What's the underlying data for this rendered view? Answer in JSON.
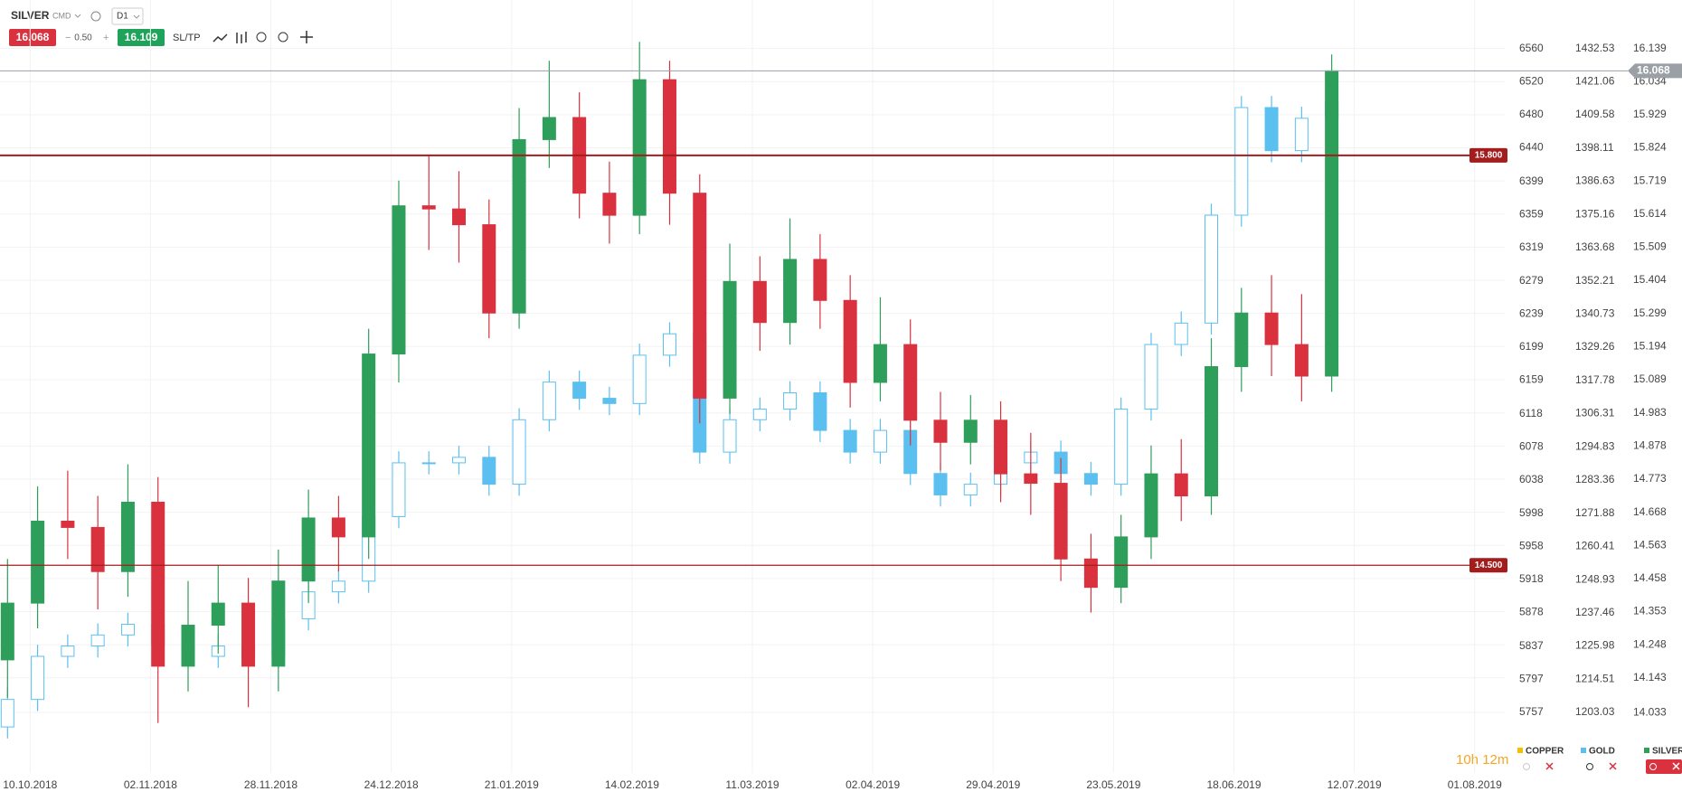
{
  "toolbar": {
    "symbol": "SILVER",
    "group": "CMD",
    "timeframe": "D1",
    "sell": 16.068,
    "spread": {
      "value": 0.5,
      "label": "0.50"
    },
    "buy": 16.109,
    "sltp": "SL/TP"
  },
  "timer": "10h 12m",
  "chart_data": {
    "type": "candlestick",
    "x": [
      1,
      5,
      9,
      13,
      17,
      21,
      25,
      29,
      33,
      37,
      41,
      45,
      49,
      53,
      57,
      61,
      65,
      69,
      73,
      77,
      81,
      85,
      89,
      93,
      97,
      101,
      105,
      109,
      113,
      117,
      121,
      125,
      129,
      133,
      137,
      141,
      145,
      149,
      153,
      157,
      161,
      165,
      169,
      173,
      177
    ],
    "xlim": [
      0,
      200
    ],
    "xticks": [
      {
        "value": 4,
        "label": "10.10.2018"
      },
      {
        "value": 20,
        "label": "02.11.2018"
      },
      {
        "value": 36,
        "label": "28.11.2018"
      },
      {
        "value": 52,
        "label": "24.12.2018"
      },
      {
        "value": 68,
        "label": "21.01.2019"
      },
      {
        "value": 84,
        "label": "14.02.2019"
      },
      {
        "value": 100,
        "label": "11.03.2019"
      },
      {
        "value": 116,
        "label": "02.04.2019"
      },
      {
        "value": 132,
        "label": "29.04.2019"
      },
      {
        "value": 148,
        "label": "23.05.2019"
      },
      {
        "value": 164,
        "label": "18.06.2019"
      },
      {
        "value": 180,
        "label": "12.07.2019"
      },
      {
        "value": 196,
        "label": "01.08.2019"
      }
    ],
    "ylim": [
      13.913,
      16.178
    ],
    "yticks": [
      16.139,
      16.034,
      15.929,
      15.824,
      15.719,
      15.614,
      15.509,
      15.404,
      15.299,
      15.194,
      15.089,
      14.983,
      14.878,
      14.773,
      14.668,
      14.563,
      14.458,
      14.353,
      14.248,
      14.143,
      14.033
    ],
    "y2lim": [
      1189.9,
      1436.78
    ],
    "y2ticks": [
      1432.53,
      1421.06,
      1409.58,
      1398.11,
      1386.63,
      1375.16,
      1363.68,
      1352.21,
      1340.73,
      1329.26,
      1317.78,
      1306.31,
      1294.83,
      1283.36,
      1271.88,
      1260.41,
      1248.93,
      1237.46,
      1225.98,
      1214.51,
      1203.03
    ],
    "y3lim": [
      5711,
      6575
    ],
    "y3ticks": [
      6560,
      6520,
      6480,
      6440,
      6399,
      6359,
      6319,
      6279,
      6239,
      6199,
      6159,
      6118,
      6078,
      6038,
      5998,
      5958,
      5918,
      5878,
      5837,
      5797,
      5757
    ],
    "grid": true,
    "last_price": 16.068,
    "levels": [
      {
        "value": 15.8,
        "label": "15.800"
      },
      {
        "value": 14.5,
        "label": "14.500"
      }
    ],
    "level_color": "#a31d1d",
    "series": [
      {
        "name": "COPPER",
        "color": "#f5c000",
        "axis": "y3",
        "hidden": true
      },
      {
        "name": "GOLD",
        "color": "#5bc0f0",
        "axis": "y2",
        "hollow_up": true,
        "open": [
          1198,
          1207.5,
          1222.4,
          1226,
          1229.8,
          1233.5,
          1226,
          1222.4,
          1226,
          1222.4,
          1235.4,
          1244.7,
          1248.4,
          1270.7,
          1289.3,
          1289.3,
          1291.2,
          1281.9,
          1304.2,
          1317.2,
          1311.6,
          1309.8,
          1326.5,
          1333.9,
          1293,
          1304.2,
          1307.9,
          1313.5,
          1300.5,
          1293,
          1300.5,
          1285.6,
          1278.2,
          1281.9,
          1289.3,
          1293,
          1285.6,
          1281.9,
          1307.9,
          1330.2,
          1337.6,
          1374.9,
          1412.1,
          1397.2,
          1408.4
        ],
        "high": [
          1211.5,
          1226.4,
          1230,
          1233.8,
          1237.5,
          1237.5,
          1230,
          1230,
          1230,
          1239.4,
          1248.7,
          1252.4,
          1274.7,
          1293.3,
          1293.3,
          1295.2,
          1295.2,
          1308.2,
          1321.2,
          1321.2,
          1315.6,
          1330.5,
          1337.9,
          1337.9,
          1308.2,
          1311.9,
          1317.5,
          1317.5,
          1304.5,
          1304.5,
          1304.5,
          1289.6,
          1285.9,
          1293.3,
          1297,
          1297,
          1289.6,
          1311.9,
          1334.2,
          1341.6,
          1378.9,
          1416.1,
          1416.1,
          1412.4,
          1417.9
        ],
        "low": [
          1194,
          1203.5,
          1218.4,
          1222,
          1225.8,
          1222,
          1218.4,
          1218.4,
          1218.4,
          1218.4,
          1231.4,
          1240.7,
          1244.4,
          1266.7,
          1285.3,
          1285.3,
          1277.9,
          1277.9,
          1300.2,
          1307.6,
          1305.8,
          1305.8,
          1322.5,
          1289,
          1289,
          1300.2,
          1303.9,
          1296.5,
          1289,
          1289,
          1281.6,
          1274.2,
          1274.2,
          1277.9,
          1285.3,
          1281.6,
          1277.9,
          1277.9,
          1303.9,
          1326.2,
          1333.6,
          1370.9,
          1393.2,
          1393.2,
          1404.4
        ],
        "close": [
          1207.5,
          1222.4,
          1226,
          1229.8,
          1233.5,
          1226,
          1222.4,
          1226,
          1222.4,
          1235.4,
          1244.7,
          1248.4,
          1270.7,
          1289.3,
          1289.3,
          1291.2,
          1281.9,
          1304.2,
          1317.2,
          1311.6,
          1309.8,
          1326.5,
          1333.9,
          1293,
          1304.2,
          1307.9,
          1313.5,
          1300.5,
          1293,
          1300.5,
          1285.6,
          1278.2,
          1281.9,
          1289.3,
          1293,
          1285.6,
          1281.9,
          1307.9,
          1330.2,
          1337.6,
          1374.9,
          1412.1,
          1397.2,
          1408.4,
          1413.9
        ]
      },
      {
        "name": "SILVER",
        "color": "#2e9e5b",
        "down_color": "#d9323e",
        "axis": "y",
        "open": [
          14.2,
          14.38,
          14.64,
          14.62,
          14.48,
          14.7,
          14.18,
          14.31,
          14.38,
          14.18,
          14.45,
          14.65,
          14.59,
          15.17,
          15.64,
          15.63,
          15.58,
          15.3,
          15.85,
          15.92,
          15.68,
          15.61,
          16.04,
          15.68,
          15.03,
          15.4,
          15.27,
          15.47,
          15.34,
          15.08,
          15.2,
          14.96,
          14.89,
          14.96,
          14.79,
          14.76,
          14.52,
          14.43,
          14.59,
          14.79,
          14.72,
          15.13,
          15.3,
          15.2,
          15.1
        ],
        "high": [
          14.52,
          14.75,
          14.8,
          14.72,
          14.82,
          14.78,
          14.45,
          14.5,
          14.46,
          14.55,
          14.74,
          14.72,
          15.25,
          15.72,
          15.8,
          15.75,
          15.66,
          15.95,
          16.1,
          16,
          15.78,
          16.16,
          16.1,
          15.74,
          15.52,
          15.48,
          15.6,
          15.55,
          15.42,
          15.35,
          15.28,
          15.05,
          15.04,
          15.02,
          14.92,
          14.84,
          14.6,
          14.66,
          14.88,
          14.9,
          15.22,
          15.38,
          15.42,
          15.36,
          16.12
        ],
        "low": [
          14.08,
          14.3,
          14.52,
          14.36,
          14.4,
          14,
          14.1,
          14.22,
          14.05,
          14.1,
          14.38,
          14.48,
          14.52,
          15.08,
          15.5,
          15.46,
          15.22,
          15.25,
          15.76,
          15.6,
          15.52,
          15.55,
          15.58,
          14.95,
          14.98,
          15.18,
          15.2,
          15.25,
          15,
          15.02,
          14.88,
          14.8,
          14.82,
          14.7,
          14.66,
          14.45,
          14.35,
          14.38,
          14.52,
          14.64,
          14.66,
          15.05,
          15.1,
          15.02,
          15.05
        ],
        "close": [
          14.38,
          14.64,
          14.62,
          14.48,
          14.7,
          14.18,
          14.31,
          14.38,
          14.18,
          14.45,
          14.65,
          14.59,
          15.17,
          15.64,
          15.63,
          15.58,
          15.3,
          15.85,
          15.92,
          15.68,
          15.61,
          16.04,
          15.68,
          15.03,
          15.4,
          15.27,
          15.47,
          15.34,
          15.08,
          15.2,
          14.96,
          14.89,
          14.96,
          14.79,
          14.76,
          14.52,
          14.43,
          14.59,
          14.79,
          14.72,
          15.13,
          15.3,
          15.2,
          15.1,
          16.068
        ]
      }
    ]
  }
}
